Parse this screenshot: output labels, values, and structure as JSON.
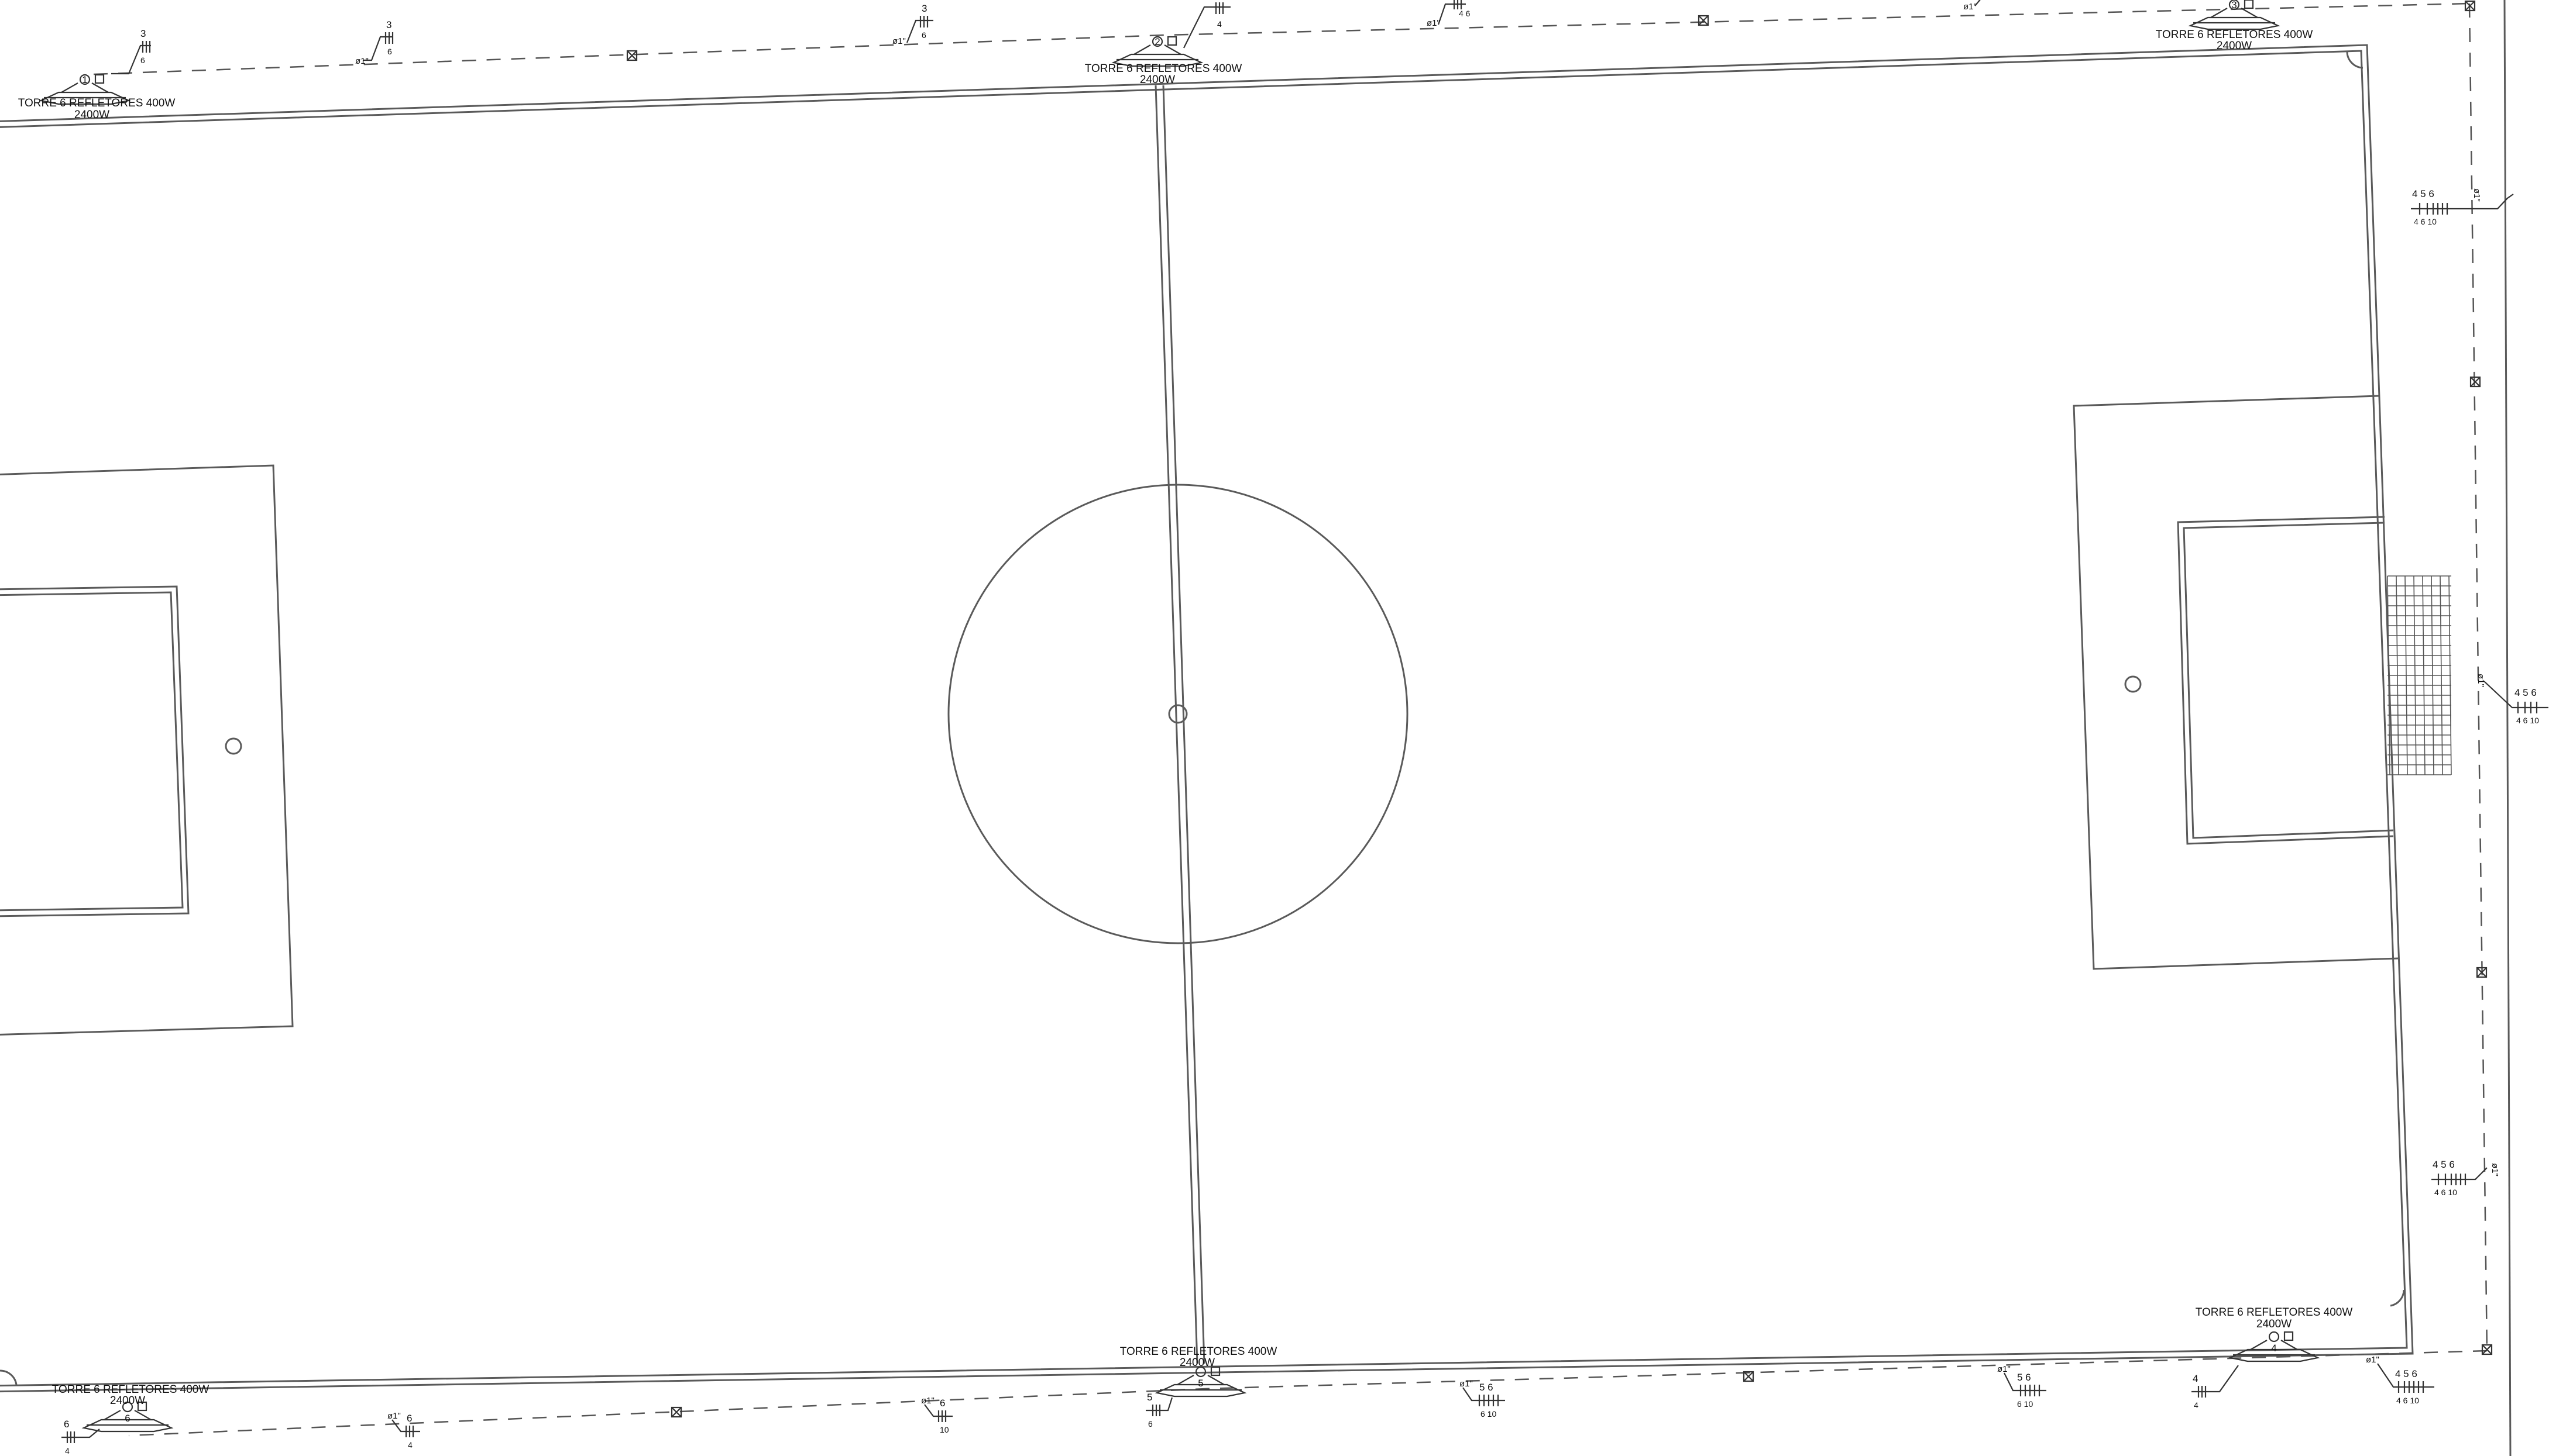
{
  "towers": [
    {
      "id": "1",
      "title": "TORRE 6 REFLETORES 400W",
      "power": "2400W"
    },
    {
      "id": "2",
      "title": "TORRE 6 REFLETORES 400W",
      "power": "2400W"
    },
    {
      "id": "3",
      "title": "TORRE 6 REFLETORES 400W",
      "power": "2400W"
    },
    {
      "id": "4",
      "title": "TORRE 6 REFLETORES 400W",
      "power": "2400W"
    },
    {
      "id": "5",
      "title": "TORRE 6 REFLETORES 400W",
      "power": "2400W"
    },
    {
      "id": "6",
      "title": "TORRE 6 REFLETORES 400W",
      "power": "2400W"
    }
  ],
  "conduit": {
    "diameter": "ø1\""
  },
  "circuit_marks": {
    "top_a": {
      "top": "3",
      "bottom": "6"
    },
    "top_b": {
      "top": "3",
      "bottom": "6"
    },
    "top_c": {
      "top": "3",
      "bottom": "6"
    },
    "top_d": {
      "top": "",
      "bottom": "4"
    },
    "top_e": {
      "top": "",
      "bottom": "4  6"
    },
    "right_a": {
      "top": "4 5  6",
      "bottom": "4  6  10"
    },
    "right_b": {
      "top": "4 5  6",
      "bottom": "4  6  10"
    },
    "right_c": {
      "top": "4 5  6",
      "bottom": "4  6  10"
    },
    "bot_a": {
      "top": "6",
      "bottom": "4"
    },
    "bot_b": {
      "top": "6",
      "bottom": "4"
    },
    "bot_c": {
      "top": "6",
      "bottom": "10"
    },
    "bot_d": {
      "top": "5",
      "bottom": "6"
    },
    "bot_e": {
      "top": "5  6",
      "bottom": "6  10"
    },
    "bot_f": {
      "top": "5  6",
      "bottom": "6  10"
    },
    "bot_g": {
      "top": "4",
      "bottom": "4"
    },
    "bot_h": {
      "top": "4 5  6",
      "bottom": "4  6  10"
    }
  }
}
